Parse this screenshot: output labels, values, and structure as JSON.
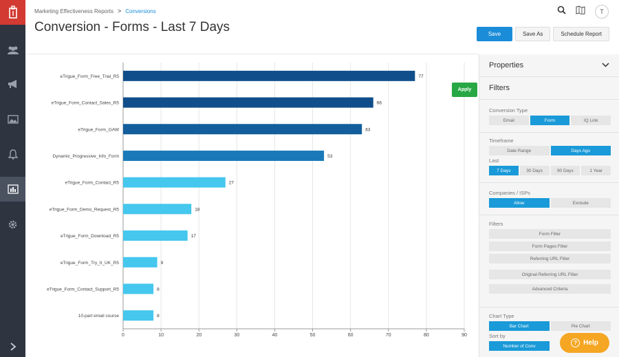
{
  "breadcrumb": {
    "parent": "Marketing Effectiveness Reports",
    "sep": ">",
    "current": "Conversions"
  },
  "page_title": "Conversion - Forms - Last 7 Days",
  "user_initial": "T",
  "actions": {
    "save": "Save",
    "save_as": "Save As",
    "schedule": "Schedule Report"
  },
  "apply_label": "Apply",
  "help_label": "Help",
  "help_icon": "?",
  "panel": {
    "properties": "Properties",
    "filters_title": "Filters",
    "conversion_type": {
      "label": "Conversion Type",
      "options": [
        "Email",
        "Form",
        "IQ Link"
      ],
      "selected": "Form"
    },
    "timeframe": {
      "label": "Timeframe",
      "options": [
        "Date Range",
        "Days Ago"
      ],
      "selected": "Days Ago"
    },
    "last": {
      "label": "Last",
      "options": [
        "7 Days",
        "30 Days",
        "90 Days",
        "1 Year"
      ],
      "selected": "7 Days"
    },
    "companies": {
      "label": "Companies / ISPs",
      "options": [
        "Allow",
        "Exclude"
      ],
      "selected": "Allow"
    },
    "filters": {
      "label": "Filters",
      "buttons": [
        "Form Filter",
        "Form Pages Filter",
        "Referring URL Filter",
        "Original Referring URL Filter",
        "Advanced Criteria"
      ]
    },
    "chart_type": {
      "label": "Chart Type",
      "options": [
        "Bar Chart",
        "Pie Chart"
      ],
      "selected": "Bar Chart"
    },
    "sort_by": {
      "label": "Sort by",
      "options": [
        "Number of Conv"
      ],
      "selected": "Number of Conv"
    }
  },
  "icons": [
    "logo-icon",
    "people-icon",
    "megaphone-icon",
    "image-icon",
    "bell-icon",
    "bar-chart-icon",
    "gear-icon",
    "chevron-right-icon",
    "search-icon",
    "map-icon",
    "chevron-down-icon"
  ],
  "colors": {
    "primary": "#1a8cd8",
    "apply": "#28a745",
    "help": "#f5a623",
    "nav": "#2e3440",
    "logo": "#d23a32"
  },
  "chart_data": {
    "type": "bar",
    "orientation": "horizontal",
    "categories": [
      "eTrigue_Form_Free_Trial_R5",
      "eTrigue_Form_Contact_Sales_R5",
      "eTrigue_Form_GAW",
      "Dynamic_Progressive_Info_Form",
      "eTrigue_Form_Contact_R5",
      "eTrigue_Form_Demo_Request_R5",
      "eTrigue_Form_Download_R5",
      "eTrigue_Form_Try_It_UK_R5",
      "eTrigue_Form_Contact_Support_R5",
      "10-part email course"
    ],
    "values": [
      77,
      66,
      63,
      53,
      27,
      18,
      17,
      9,
      8,
      8
    ],
    "bar_colors": [
      "#0f4e8a",
      "#0f4e8a",
      "#135e9c",
      "#1a7ab9",
      "#45c7ee",
      "#45c7ee",
      "#45c7ee",
      "#45c7ee",
      "#45c7ee",
      "#45c7ee"
    ],
    "xlim": [
      0,
      90
    ],
    "xticks": [
      0,
      10,
      20,
      30,
      40,
      50,
      60,
      70,
      80,
      90
    ],
    "grid": true
  }
}
